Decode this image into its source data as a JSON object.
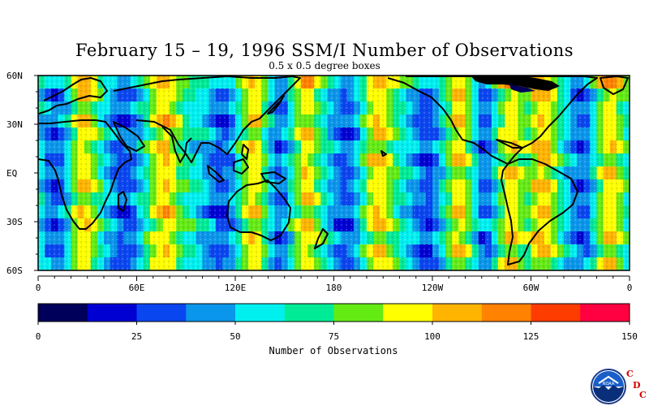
{
  "title": "February 15 – 19, 1996 SSM/I Number of Observations",
  "subtitle": "0.5 x 0.5 degree boxes",
  "lat_labels": [
    "60N",
    "30N",
    "EQ",
    "30S",
    "60S"
  ],
  "lon_labels": [
    "0",
    "60E",
    "120E",
    "180",
    "120W",
    "60W",
    "0"
  ],
  "colorbar": {
    "title": "Number of Observations",
    "tick_labels": [
      "0",
      "25",
      "50",
      "75",
      "100",
      "125",
      "150"
    ],
    "colors": [
      "#00005a",
      "#0000d2",
      "#0a46f0",
      "#0a96eb",
      "#00f0f0",
      "#00eb96",
      "#64eb14",
      "#ffff00",
      "#ffb400",
      "#ff8200",
      "#ff3c00",
      "#ff0040"
    ]
  },
  "logo": {
    "icon": "noaa-logo-icon",
    "text": "NOAA",
    "letters": [
      "C",
      "D",
      "C"
    ]
  },
  "chart_data": {
    "type": "heatmap",
    "title": "February 15 – 19, 1996 SSM/I Number of Observations",
    "subtitle": "0.5 x 0.5 degree boxes",
    "xlabel": "",
    "ylabel": "",
    "xlim": [
      0,
      360
    ],
    "ylim": [
      -60,
      60
    ],
    "colorbar_label": "Number of Observations",
    "value_range": [
      0,
      150
    ],
    "value_ticks": [
      0,
      25,
      50,
      75,
      100,
      125,
      150
    ],
    "swath_peaks_deg_east": [
      25,
      75,
      130,
      160,
      205,
      255,
      285,
      305,
      345
    ],
    "swath_troughs_deg_east": [
      10,
      50,
      110,
      145,
      185,
      235,
      270,
      330
    ]
  }
}
